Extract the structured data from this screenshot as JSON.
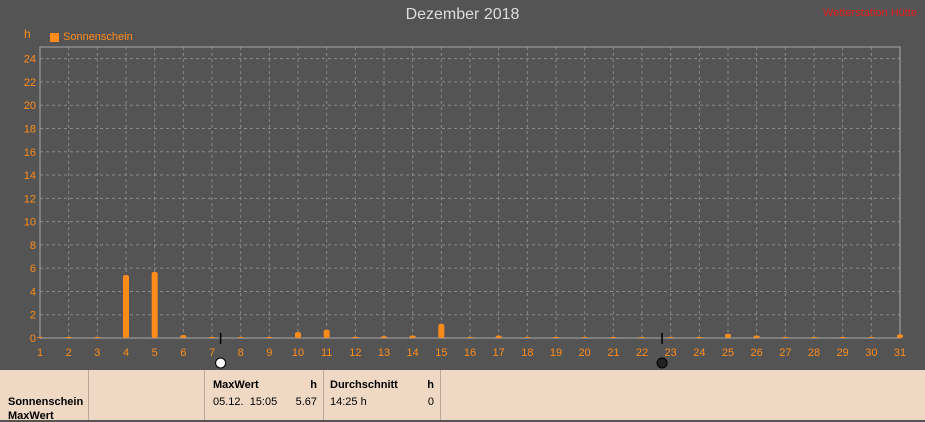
{
  "header": {
    "title": "Dezember 2018",
    "brand": "Wetterstation Hütte",
    "unit": "h"
  },
  "legend": {
    "label": "Sonnenschein"
  },
  "colors": {
    "series": "#ff8c1a",
    "axis": "#ff8c1a",
    "plot_bg": "#545454",
    "grid": "#8a8a8a",
    "panel_bg": "#f0d9c4",
    "brand": "#e02020"
  },
  "markers": [
    {
      "day": 7.3,
      "icon": "full-moon-icon"
    },
    {
      "day": 22.7,
      "icon": "new-moon-icon"
    }
  ],
  "chart_data": {
    "type": "bar",
    "title": "Dezember 2018",
    "ylabel": "h",
    "ylim": [
      0,
      25
    ],
    "yticks": [
      0,
      2,
      4,
      6,
      8,
      10,
      12,
      14,
      16,
      18,
      20,
      22,
      24
    ],
    "xlim": [
      1,
      31
    ],
    "categories": [
      "1",
      "2",
      "3",
      "4",
      "5",
      "6",
      "7",
      "8",
      "9",
      "10",
      "11",
      "12",
      "13",
      "14",
      "15",
      "16",
      "17",
      "18",
      "19",
      "20",
      "21",
      "22",
      "23",
      "24",
      "25",
      "26",
      "27",
      "28",
      "29",
      "30",
      "31"
    ],
    "series": [
      {
        "name": "Sonnenschein",
        "values": [
          0,
          0,
          0,
          5.4,
          5.67,
          0.25,
          0,
          0,
          0,
          0.5,
          0.7,
          0.1,
          0.15,
          0.2,
          1.2,
          0,
          0.2,
          0,
          0,
          0,
          0,
          0,
          0,
          0,
          0.35,
          0.2,
          0,
          0,
          0,
          0,
          0.3
        ]
      }
    ],
    "grid": true,
    "legend": "top-left"
  },
  "panel": {
    "row_label_1": "Sonnenschein",
    "row_label_2": "MaxWert",
    "max": {
      "header": "MaxWert",
      "unit": "h",
      "datetime": "05.12.  15:05",
      "value": "5.67"
    },
    "avg": {
      "header": "Durchschnitt",
      "unit": "h",
      "time": "14:25 h",
      "value": "0"
    }
  }
}
